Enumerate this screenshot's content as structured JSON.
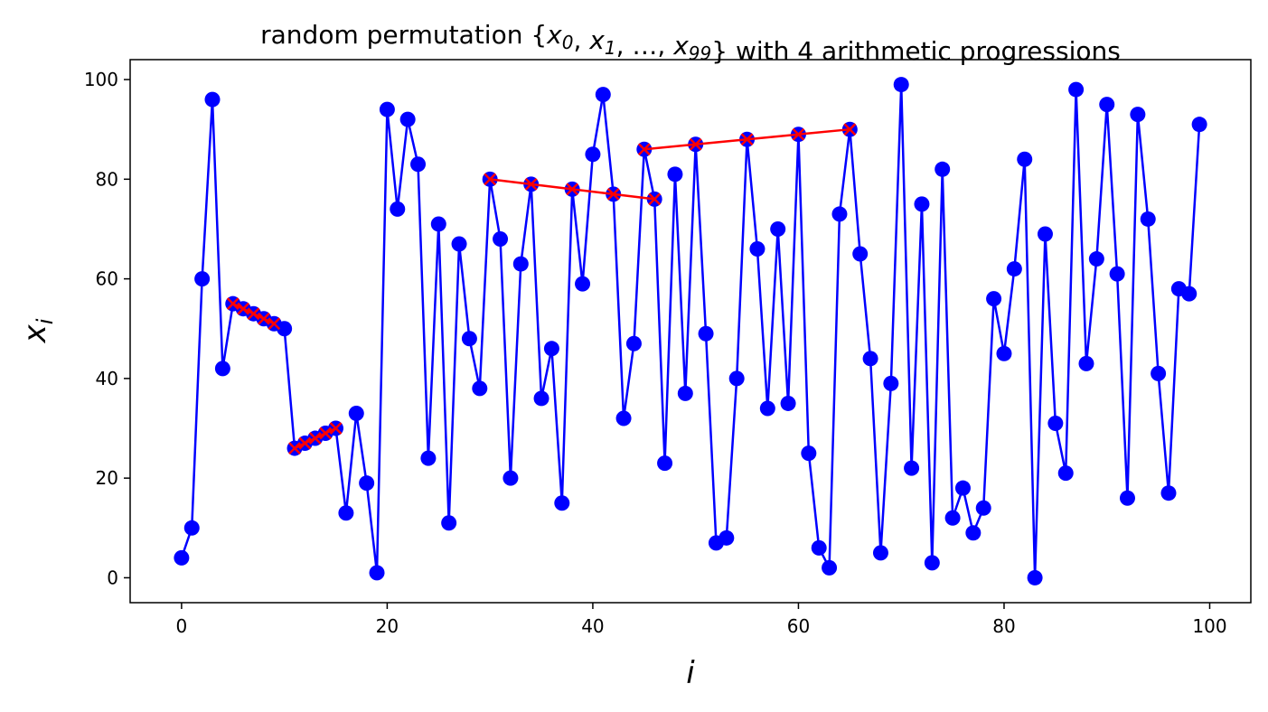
{
  "chart_data": {
    "type": "line",
    "title": {
      "prefix": "random permutation {",
      "suffix": "} with 4 arithmetic progressions",
      "math": [
        {
          "base": "x",
          "sub": "0"
        },
        {
          "sep": ", "
        },
        {
          "base": "x",
          "sub": "1"
        },
        {
          "sep": ", …, "
        },
        {
          "base": "x",
          "sub": "99"
        }
      ]
    },
    "xlabel": "i",
    "ylabel": {
      "base": "x",
      "sub": "i"
    },
    "xlim": [
      -5,
      104
    ],
    "ylim": [
      -5,
      104
    ],
    "xticks": [
      0,
      20,
      40,
      60,
      80,
      100
    ],
    "yticks": [
      0,
      20,
      40,
      60,
      80,
      100
    ],
    "grid": false,
    "colors": {
      "series": "#0000ff",
      "progression": "#ff0000"
    },
    "series": [
      {
        "marker": "circle",
        "x_start": 0,
        "values": [
          4,
          10,
          60,
          96,
          42,
          55,
          54,
          53,
          52,
          51,
          50,
          26,
          27,
          28,
          29,
          30,
          13,
          33,
          19,
          1,
          94,
          74,
          92,
          83,
          24,
          71,
          11,
          67,
          48,
          38,
          80,
          68,
          20,
          63,
          79,
          36,
          46,
          15,
          78,
          59,
          85,
          97,
          77,
          32,
          47,
          86,
          76,
          23,
          81,
          37,
          87,
          49,
          7,
          8,
          40,
          88,
          66,
          34,
          70,
          35,
          89,
          25,
          6,
          2,
          73,
          90,
          65,
          44,
          5,
          39,
          99,
          22,
          75,
          3,
          82,
          12,
          18,
          9,
          14,
          56,
          45,
          62,
          84,
          0,
          69,
          31,
          21,
          98,
          43,
          64,
          95,
          61,
          16,
          93,
          72,
          41,
          17,
          58,
          57,
          91
        ]
      }
    ],
    "progressions": [
      {
        "marker": "x",
        "x": [
          5,
          6,
          7,
          8,
          9
        ],
        "y": [
          55,
          54,
          53,
          52,
          51
        ]
      },
      {
        "marker": "x",
        "x": [
          11,
          12,
          13,
          14,
          15
        ],
        "y": [
          26,
          27,
          28,
          29,
          30
        ]
      },
      {
        "marker": "x",
        "x": [
          30,
          34,
          38,
          42,
          46
        ],
        "y": [
          80,
          79,
          78,
          77,
          76
        ]
      },
      {
        "marker": "x",
        "x": [
          45,
          50,
          55,
          60,
          65
        ],
        "y": [
          86,
          87,
          88,
          89,
          90
        ]
      }
    ]
  }
}
